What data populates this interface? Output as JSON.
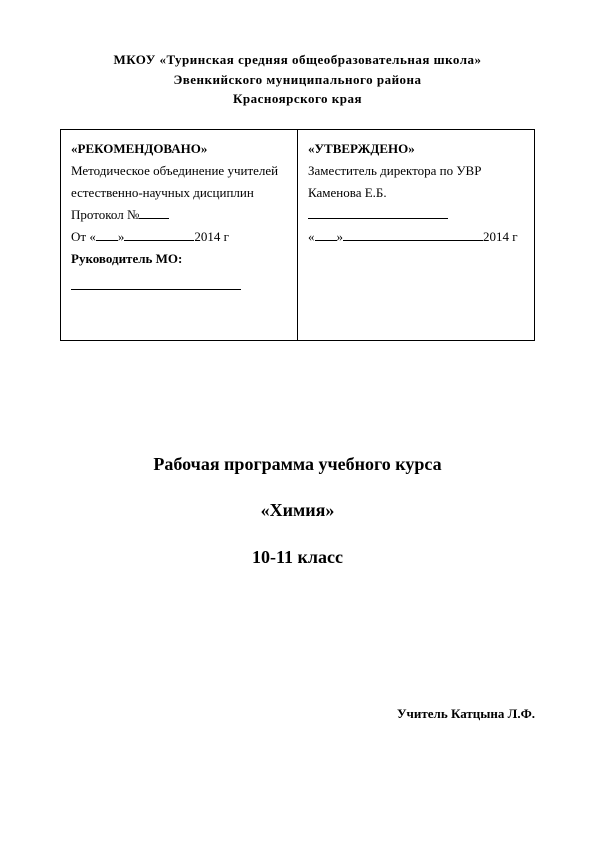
{
  "header": {
    "line1": "МКОУ «Туринская средняя общеобразовательная школа»",
    "line2": "Эвенкийского муниципального района",
    "line3": "Красноярского края"
  },
  "approval": {
    "left": {
      "title": "«РЕКОМЕНДОВАНО»",
      "line2": "Методическое объединение учителей",
      "line3": "естественно-научных дисциплин",
      "protocol_prefix": "Протокол №",
      "date_prefix": "От «",
      "date_suffix": "2014 г",
      "leader_label": "Руководитель МО:"
    },
    "right": {
      "title": "«УТВЕРЖДЕНО»",
      "line2": "Заместитель директора по УВР",
      "name": "Каменова Е.Б.",
      "date_suffix": "2014 г"
    }
  },
  "main": {
    "line1": "Рабочая программа учебного курса",
    "line2": "«Химия»",
    "line3": "10-11 класс"
  },
  "teacher": {
    "label": "Учитель Катцына Л.Ф."
  }
}
